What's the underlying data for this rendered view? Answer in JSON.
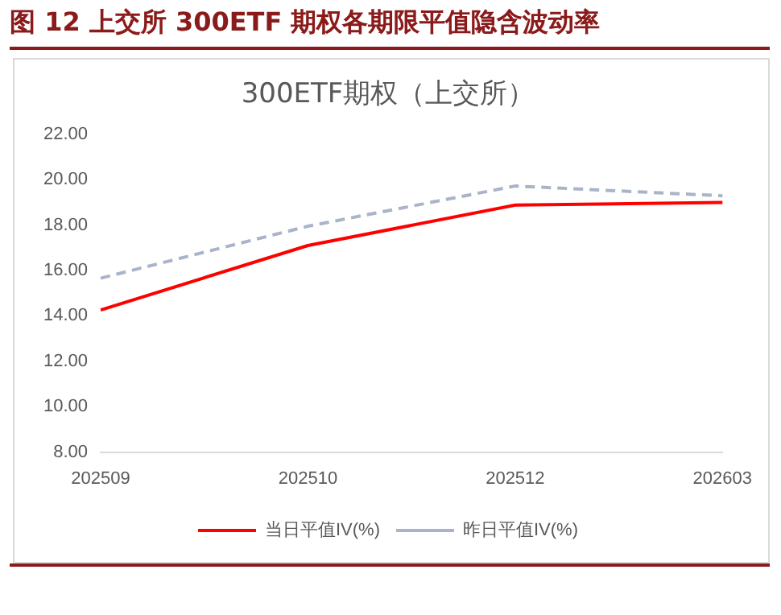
{
  "chart_data": {
    "type": "line",
    "title": "图 12   上交所 300ETF 期权各期限平值隐含波动率",
    "subtitle": "300ETF期权（上交所）",
    "categories": [
      "202509",
      "202510",
      "202512",
      "202603"
    ],
    "series": [
      {
        "name": "当日平值IV(%)",
        "color": "#ff0000",
        "values": [
          14.26,
          17.1,
          18.88,
          19.0
        ],
        "line_style": "solid"
      },
      {
        "name": "昨日平值IV(%)",
        "color": "#a9b4c8",
        "values": [
          15.66,
          17.95,
          19.72,
          19.29
        ],
        "line_style": "dashed"
      }
    ],
    "ylim": [
      8,
      22
    ],
    "yticks": [
      {
        "value": 8,
        "label": "8.00"
      },
      {
        "value": 10,
        "label": "10.00"
      },
      {
        "value": 12,
        "label": "12.00"
      },
      {
        "value": 14,
        "label": "14.00"
      },
      {
        "value": 16,
        "label": "16.00"
      },
      {
        "value": 18,
        "label": "18.00"
      },
      {
        "value": 20,
        "label": "20.00"
      },
      {
        "value": 22,
        "label": "22.00"
      }
    ],
    "grid": false,
    "legend": "bottom",
    "marker": "none"
  }
}
